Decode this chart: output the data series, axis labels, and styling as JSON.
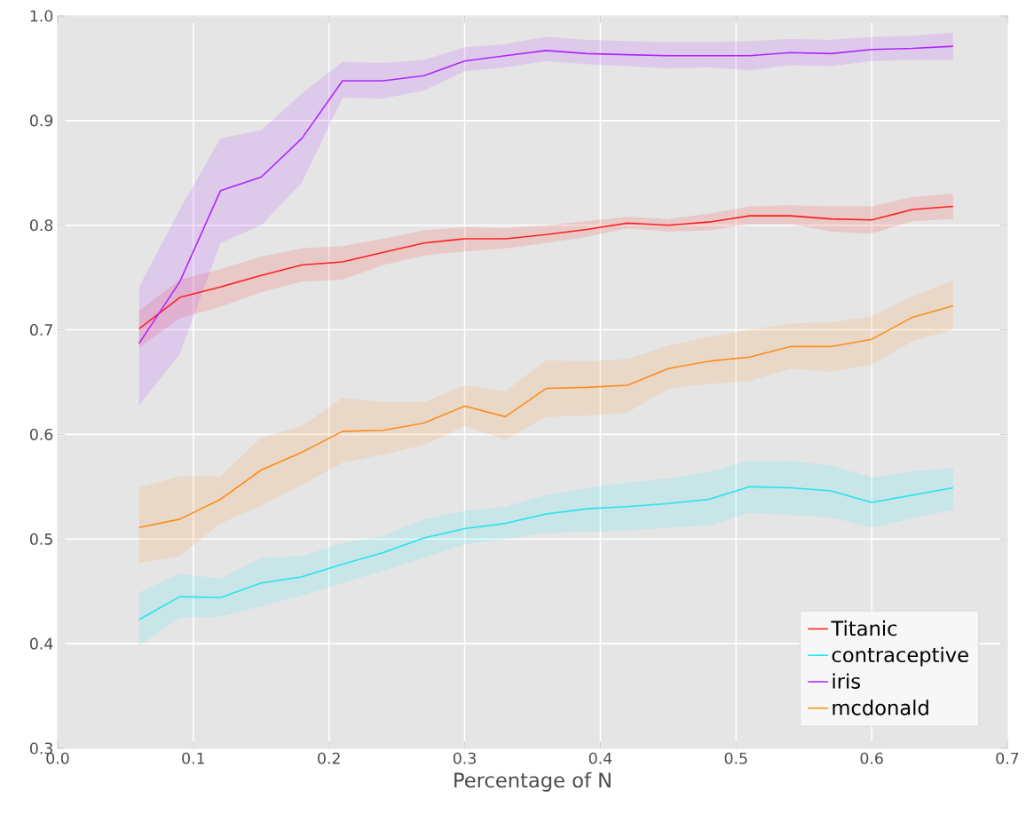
{
  "chart_data": {
    "type": "line",
    "xlabel": "Percentage of N",
    "x": [
      0.06,
      0.09,
      0.12,
      0.15,
      0.18,
      0.21,
      0.24,
      0.27,
      0.3,
      0.33,
      0.36,
      0.39,
      0.42,
      0.45,
      0.48,
      0.51,
      0.54,
      0.57,
      0.6,
      0.63,
      0.66
    ],
    "series": [
      {
        "name": "Titanic",
        "color": "#ff2020",
        "values": [
          0.701,
          0.731,
          0.741,
          0.752,
          0.762,
          0.765,
          0.774,
          0.783,
          0.787,
          0.787,
          0.791,
          0.796,
          0.802,
          0.8,
          0.803,
          0.809,
          0.809,
          0.806,
          0.805,
          0.815,
          0.818
        ],
        "lower": [
          0.683,
          0.711,
          0.722,
          0.736,
          0.746,
          0.748,
          0.762,
          0.771,
          0.775,
          0.778,
          0.783,
          0.789,
          0.797,
          0.794,
          0.795,
          0.801,
          0.801,
          0.794,
          0.792,
          0.804,
          0.806
        ],
        "upper": [
          0.718,
          0.748,
          0.758,
          0.77,
          0.778,
          0.78,
          0.787,
          0.795,
          0.798,
          0.797,
          0.8,
          0.804,
          0.808,
          0.806,
          0.811,
          0.818,
          0.819,
          0.818,
          0.818,
          0.827,
          0.83
        ]
      },
      {
        "name": "contraceptive",
        "color": "#22e5f2",
        "values": [
          0.423,
          0.445,
          0.444,
          0.458,
          0.464,
          0.476,
          0.487,
          0.501,
          0.51,
          0.515,
          0.524,
          0.529,
          0.531,
          0.534,
          0.538,
          0.55,
          0.549,
          0.546,
          0.535,
          0.542,
          0.549
        ],
        "lower": [
          0.398,
          0.425,
          0.426,
          0.436,
          0.446,
          0.458,
          0.47,
          0.482,
          0.495,
          0.5,
          0.506,
          0.507,
          0.508,
          0.511,
          0.513,
          0.525,
          0.523,
          0.521,
          0.511,
          0.52,
          0.528
        ],
        "upper": [
          0.449,
          0.467,
          0.462,
          0.482,
          0.484,
          0.496,
          0.503,
          0.519,
          0.527,
          0.531,
          0.542,
          0.549,
          0.554,
          0.558,
          0.564,
          0.575,
          0.575,
          0.57,
          0.559,
          0.565,
          0.568
        ]
      },
      {
        "name": "iris",
        "color": "#b026ff",
        "values": [
          0.687,
          0.746,
          0.833,
          0.846,
          0.883,
          0.938,
          0.938,
          0.943,
          0.957,
          0.962,
          0.967,
          0.964,
          0.963,
          0.962,
          0.962,
          0.962,
          0.965,
          0.964,
          0.968,
          0.969,
          0.971
        ],
        "lower": [
          0.628,
          0.677,
          0.783,
          0.8,
          0.841,
          0.922,
          0.921,
          0.929,
          0.947,
          0.951,
          0.957,
          0.954,
          0.952,
          0.95,
          0.951,
          0.948,
          0.953,
          0.952,
          0.957,
          0.958,
          0.958
        ],
        "upper": [
          0.741,
          0.815,
          0.883,
          0.891,
          0.926,
          0.956,
          0.955,
          0.958,
          0.97,
          0.973,
          0.98,
          0.977,
          0.976,
          0.975,
          0.975,
          0.976,
          0.978,
          0.977,
          0.98,
          0.981,
          0.984
        ]
      },
      {
        "name": "mcdonald",
        "color": "#ff8c1a",
        "values": [
          0.511,
          0.519,
          0.538,
          0.566,
          0.583,
          0.603,
          0.604,
          0.611,
          0.627,
          0.617,
          0.644,
          0.645,
          0.647,
          0.663,
          0.67,
          0.674,
          0.684,
          0.684,
          0.691,
          0.712,
          0.723
        ],
        "lower": [
          0.477,
          0.484,
          0.515,
          0.532,
          0.552,
          0.573,
          0.581,
          0.59,
          0.608,
          0.595,
          0.617,
          0.618,
          0.621,
          0.644,
          0.648,
          0.651,
          0.663,
          0.66,
          0.667,
          0.689,
          0.7
        ],
        "upper": [
          0.549,
          0.56,
          0.56,
          0.597,
          0.608,
          0.635,
          0.631,
          0.631,
          0.647,
          0.641,
          0.671,
          0.67,
          0.672,
          0.685,
          0.693,
          0.7,
          0.706,
          0.707,
          0.713,
          0.732,
          0.747
        ]
      }
    ],
    "xlim": [
      0,
      0.7
    ],
    "ylim": [
      0.3,
      1.0
    ],
    "xticks": [
      {
        "value": 0,
        "label": "0.0"
      },
      {
        "value": 0.1,
        "label": "0.1"
      },
      {
        "value": 0.2,
        "label": "0.2"
      },
      {
        "value": 0.3,
        "label": "0.3"
      },
      {
        "value": 0.4,
        "label": "0.4"
      },
      {
        "value": 0.5,
        "label": "0.5"
      },
      {
        "value": 0.6,
        "label": "0.6"
      },
      {
        "value": 0.7,
        "label": "0.7"
      }
    ],
    "yticks": [
      {
        "value": 0.3,
        "label": "0.3"
      },
      {
        "value": 0.4,
        "label": "0.4"
      },
      {
        "value": 0.5,
        "label": "0.5"
      },
      {
        "value": 0.6,
        "label": "0.6"
      },
      {
        "value": 0.7,
        "label": "0.7"
      },
      {
        "value": 0.8,
        "label": "0.8"
      },
      {
        "value": 0.9,
        "label": "0.9"
      },
      {
        "value": 1.0,
        "label": "1.0"
      }
    ],
    "grid": true,
    "legend": "bottom right",
    "marker": "none",
    "line_style": "solid"
  }
}
